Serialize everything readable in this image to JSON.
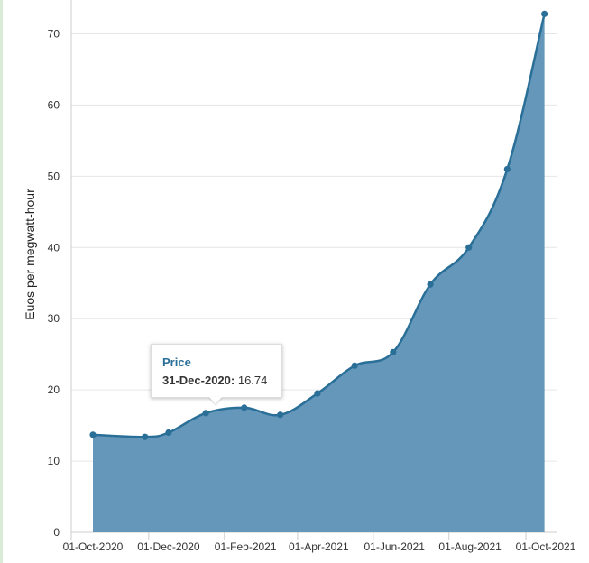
{
  "chart_data": {
    "type": "area",
    "ylabel": "Euos per megwatt-hour",
    "ylim": [
      0,
      75
    ],
    "yticks": [
      0,
      10,
      20,
      30,
      40,
      50,
      60,
      70
    ],
    "xticks": [
      "01-Oct-2020",
      "01-Dec-2020",
      "01-Feb-2021",
      "01-Apr-2021",
      "01-Jun-2021",
      "01-Aug-2021",
      "01-Oct-2021"
    ],
    "grid": true,
    "series": [
      {
        "name": "Price",
        "color": "#2a6f97",
        "fill": "#6497b9",
        "points": [
          {
            "date": "2020-10-01",
            "value": 13.7
          },
          {
            "date": "2020-11-12",
            "value": 13.4
          },
          {
            "date": "2020-12-01",
            "value": 14.0
          },
          {
            "date": "2020-12-31",
            "value": 16.74
          },
          {
            "date": "2021-01-31",
            "value": 17.5
          },
          {
            "date": "2021-03-01",
            "value": 16.5
          },
          {
            "date": "2021-03-31",
            "value": 19.5
          },
          {
            "date": "2021-04-30",
            "value": 23.4
          },
          {
            "date": "2021-05-31",
            "value": 25.3
          },
          {
            "date": "2021-06-30",
            "value": 34.8
          },
          {
            "date": "2021-07-31",
            "value": 40.0
          },
          {
            "date": "2021-08-31",
            "value": 51.0
          },
          {
            "date": "2021-09-30",
            "value": 72.8
          }
        ]
      }
    ]
  },
  "tooltip": {
    "series": "Price",
    "date": "31-Dec-2020:",
    "value": "16.74"
  }
}
